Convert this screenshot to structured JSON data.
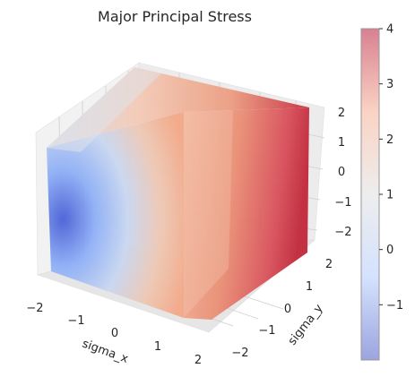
{
  "chart_data": {
    "type": "heatmap",
    "subtype": "3d-surface-cube",
    "title": "Major Principal Stress",
    "xlabel": "sigma_x",
    "ylabel": "sigma_y",
    "zlabel": "",
    "x_ticks": [
      "−2",
      "−1",
      "0",
      "1",
      "2"
    ],
    "y_ticks": [
      "−2",
      "−1",
      "0",
      "1",
      "2"
    ],
    "z_ticks": [
      "−2",
      "−1",
      "0",
      "1",
      "2"
    ],
    "xlim": [
      -2,
      2
    ],
    "ylim": [
      -2,
      2
    ],
    "zlim": [
      -2,
      2
    ],
    "grid": true,
    "colorbar": {
      "colormap": "coolwarm",
      "alpha": 0.5,
      "min": -2,
      "max": 4,
      "ticks": [
        "−1",
        "0",
        "1",
        "2",
        "3",
        "4"
      ],
      "tick_values": [
        -1,
        0,
        1,
        2,
        3,
        4
      ]
    }
  }
}
